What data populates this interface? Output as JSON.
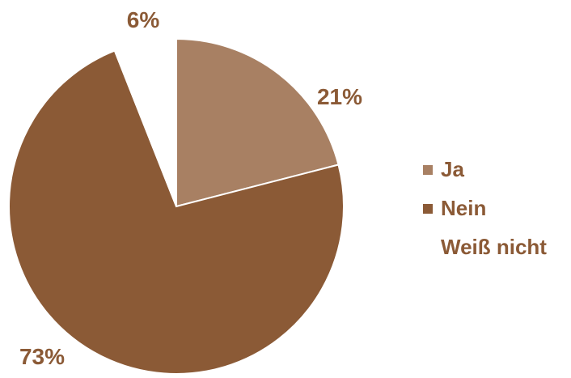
{
  "chart_data": {
    "type": "pie",
    "title": "",
    "slices": [
      {
        "label": "Ja",
        "value": 21,
        "display": "21%",
        "color": "#A88063"
      },
      {
        "label": "Nein",
        "value": 73,
        "display": "73%",
        "color": "#8B5A36"
      },
      {
        "label": "Weiß nicht",
        "value": 6,
        "display": "6%",
        "color": "#FFFFFF"
      }
    ],
    "legend_position": "right",
    "label_color": "#8B5A36",
    "slice_border_color": "#FFFFFF"
  }
}
